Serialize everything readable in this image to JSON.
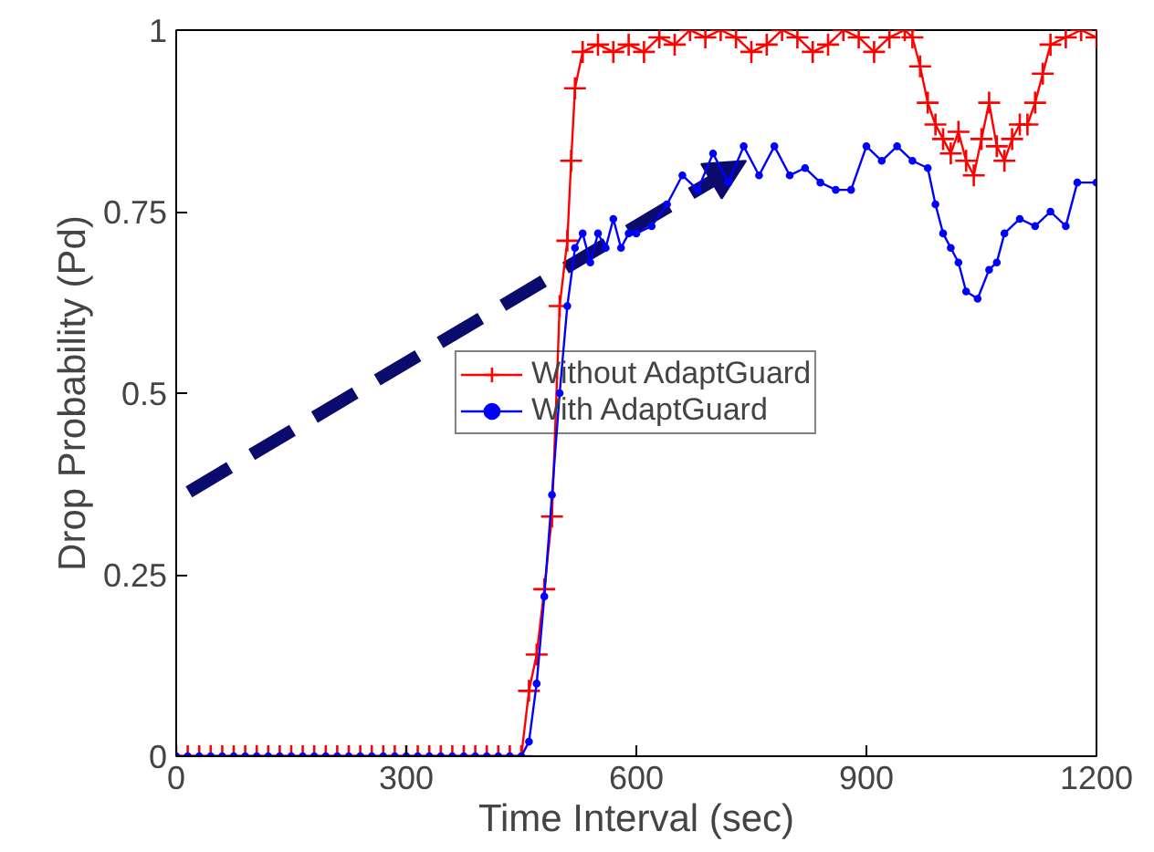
{
  "chart_data": {
    "type": "line",
    "xlabel": "Time Interval (sec)",
    "ylabel": "Drop Probability (Pd)",
    "xlim": [
      0,
      1200
    ],
    "xticks": [
      0,
      300,
      600,
      900,
      1200
    ],
    "ylim": [
      0,
      1
    ],
    "yticks": [
      0,
      {
        "value": 0.25,
        "label": "0.25"
      },
      {
        "value": 0.5,
        "label": "0.5"
      },
      {
        "value": 0.75,
        "label": "0.75"
      },
      1
    ],
    "grid": false,
    "legend": "center",
    "series": [
      {
        "name": "Without AdaptGuard",
        "color": "#ff0000",
        "marker": "cross",
        "x": [
          0,
          15,
          30,
          45,
          60,
          75,
          90,
          105,
          120,
          135,
          150,
          165,
          180,
          195,
          210,
          225,
          240,
          255,
          270,
          285,
          300,
          315,
          330,
          345,
          360,
          375,
          390,
          405,
          420,
          435,
          450,
          460,
          470,
          480,
          490,
          500,
          510,
          515,
          520,
          530,
          550,
          570,
          590,
          610,
          630,
          650,
          670,
          690,
          710,
          730,
          750,
          770,
          790,
          810,
          830,
          850,
          870,
          890,
          910,
          930,
          950,
          960,
          970,
          980,
          990,
          1000,
          1010,
          1020,
          1030,
          1040,
          1050,
          1060,
          1070,
          1080,
          1090,
          1100,
          1110,
          1120,
          1130,
          1140,
          1160,
          1180,
          1200
        ],
        "values": [
          0,
          0,
          0,
          0,
          0,
          0,
          0,
          0,
          0,
          0,
          0,
          0,
          0,
          0,
          0,
          0,
          0,
          0,
          0,
          0,
          0,
          0,
          0,
          0,
          0,
          0,
          0,
          0,
          0,
          0,
          0,
          0.09,
          0.14,
          0.23,
          0.33,
          0.62,
          0.71,
          0.82,
          0.92,
          0.97,
          0.98,
          0.97,
          0.98,
          0.97,
          0.99,
          0.98,
          1.0,
          0.99,
          1.0,
          0.99,
          0.97,
          0.98,
          1.0,
          0.99,
          0.97,
          0.98,
          1.0,
          0.99,
          0.97,
          0.99,
          1.0,
          0.99,
          0.95,
          0.9,
          0.87,
          0.85,
          0.83,
          0.86,
          0.82,
          0.8,
          0.85,
          0.9,
          0.84,
          0.82,
          0.85,
          0.87,
          0.87,
          0.9,
          0.94,
          0.98,
          0.99,
          1.0,
          0.99
        ]
      },
      {
        "name": "With AdaptGuard",
        "color": "#0000ff",
        "marker": "circle",
        "x": [
          0,
          15,
          30,
          45,
          60,
          75,
          90,
          105,
          120,
          135,
          150,
          165,
          180,
          195,
          210,
          225,
          240,
          255,
          270,
          285,
          300,
          315,
          330,
          345,
          360,
          375,
          390,
          405,
          420,
          435,
          450,
          460,
          470,
          480,
          490,
          500,
          510,
          520,
          530,
          540,
          550,
          560,
          570,
          580,
          590,
          600,
          620,
          640,
          660,
          680,
          700,
          720,
          740,
          760,
          780,
          800,
          820,
          840,
          860,
          880,
          900,
          920,
          940,
          960,
          980,
          990,
          1000,
          1010,
          1020,
          1030,
          1045,
          1060,
          1070,
          1080,
          1100,
          1120,
          1140,
          1160,
          1175,
          1200
        ],
        "values": [
          0,
          0,
          0,
          0,
          0,
          0,
          0,
          0,
          0,
          0,
          0,
          0,
          0,
          0,
          0,
          0,
          0,
          0,
          0,
          0,
          0,
          0,
          0,
          0,
          0,
          0,
          0,
          0,
          0,
          0,
          0,
          0.02,
          0.1,
          0.22,
          0.36,
          0.5,
          0.62,
          0.7,
          0.72,
          0.68,
          0.72,
          0.7,
          0.74,
          0.7,
          0.72,
          0.72,
          0.73,
          0.76,
          0.8,
          0.78,
          0.83,
          0.79,
          0.84,
          0.8,
          0.84,
          0.8,
          0.81,
          0.79,
          0.78,
          0.78,
          0.84,
          0.82,
          0.84,
          0.82,
          0.81,
          0.76,
          0.72,
          0.7,
          0.68,
          0.64,
          0.63,
          0.67,
          0.68,
          0.72,
          0.74,
          0.73,
          0.75,
          0.73,
          0.79,
          0.79
        ]
      }
    ]
  }
}
